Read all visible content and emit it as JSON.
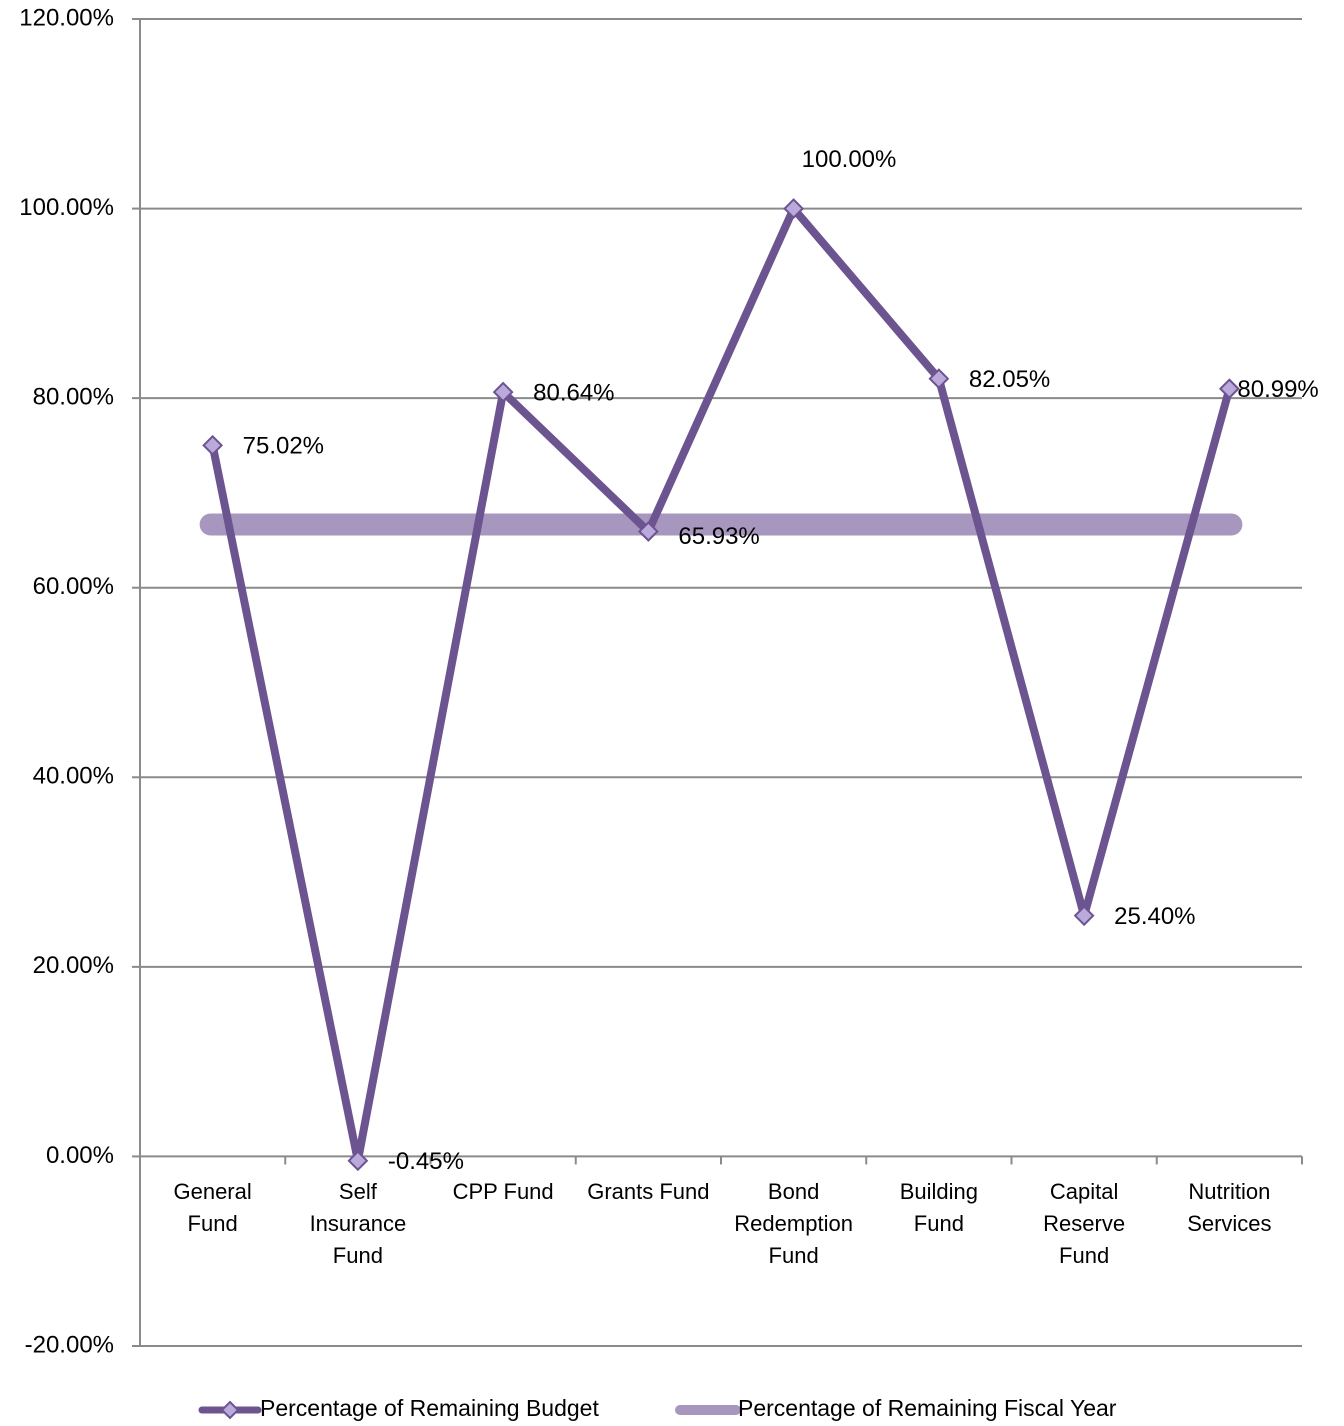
{
  "chart_data": {
    "type": "line",
    "categories": [
      "General Fund",
      "Self Insurance Fund",
      "CPP Fund",
      "Grants Fund",
      "Bond Redemption Fund",
      "Building Fund",
      "Capital Reserve Fund",
      "Nutrition Services"
    ],
    "series": [
      {
        "name": "Percentage of Remaining Budget",
        "color": "#6c5490",
        "marker_color": "#bba9dc",
        "values": [
          75.02,
          -0.45,
          80.64,
          65.93,
          100.0,
          82.05,
          25.4,
          80.99
        ],
        "value_labels": [
          "75.02%",
          "-0.45%",
          "80.64%",
          "65.93%",
          "100.00%",
          "82.05%",
          "25.40%",
          "80.99%"
        ]
      },
      {
        "name": "Percentage of Remaining Fiscal Year",
        "color": "#a797be",
        "values": [
          66.67,
          66.67,
          66.67,
          66.67,
          66.67,
          66.67,
          66.67,
          66.67
        ]
      }
    ],
    "ylim": [
      -20,
      120
    ],
    "yticks": [
      {
        "value": -20,
        "label": "-20.00%"
      },
      {
        "value": 0,
        "label": "0.00%"
      },
      {
        "value": 20,
        "label": "20.00%"
      },
      {
        "value": 40,
        "label": "40.00%"
      },
      {
        "value": 60,
        "label": "60.00%"
      },
      {
        "value": 80,
        "label": "80.00%"
      },
      {
        "value": 100,
        "label": "100.00%"
      },
      {
        "value": 120,
        "label": "120.00%"
      }
    ],
    "grid": true,
    "legend": "bottom"
  }
}
